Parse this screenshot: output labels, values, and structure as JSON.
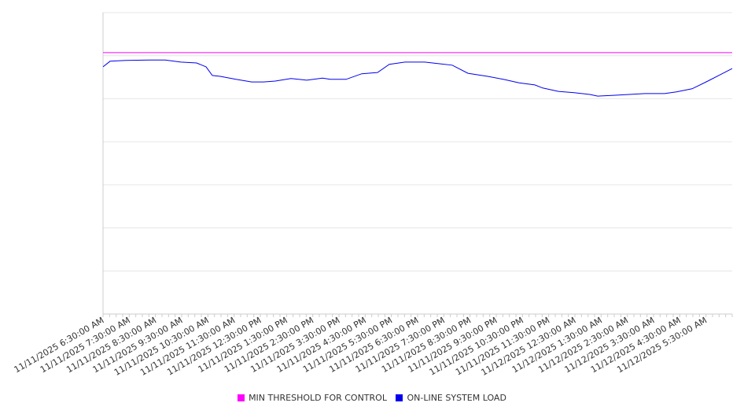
{
  "chart_data": {
    "type": "line",
    "title": "",
    "xlabel": "",
    "ylabel": "",
    "x_tick_labels": [
      "11/11/2025 6:30:00 AM",
      "11/11/2025 7:30:00 AM",
      "11/11/2025 8:30:00 AM",
      "11/11/2025 9:30:00 AM",
      "11/11/2025 10:30:00 AM",
      "11/11/2025 11:30:00 AM",
      "11/11/2025 12:30:00 PM",
      "11/11/2025 1:30:00 PM",
      "11/11/2025 2:30:00 PM",
      "11/11/2025 3:30:00 PM",
      "11/11/2025 4:30:00 PM",
      "11/11/2025 5:30:00 PM",
      "11/11/2025 6:30:00 PM",
      "11/11/2025 7:30:00 PM",
      "11/11/2025 8:30:00 PM",
      "11/11/2025 9:30:00 PM",
      "11/11/2025 10:30:00 PM",
      "11/11/2025 11:30:00 PM",
      "11/12/2025 12:30:00 AM",
      "11/12/2025 1:30:00 AM",
      "11/12/2025 2:30:00 AM",
      "11/12/2025 3:30:00 AM",
      "11/12/2025 4:30:00 AM",
      "11/12/2025 5:30:00 AM"
    ],
    "x_unit": "hours since 11/11/2025 6:30 AM",
    "xlim": [
      0,
      24
    ],
    "ylim": [
      0,
      7
    ],
    "y_gridlines": 7,
    "grid": true,
    "legend_position": "bottom",
    "series": [
      {
        "name": "MIN THRESHOLD FOR CONTROL",
        "color": "#ff00ff",
        "x": [
          0,
          24
        ],
        "y": [
          6.07,
          6.07
        ]
      },
      {
        "name": "ON-LINE SYSTEM LOAD",
        "color": "#0000ee",
        "x": [
          0,
          0.27,
          0.87,
          1.77,
          2.37,
          2.97,
          3.57,
          3.93,
          4.17,
          4.47,
          5.07,
          5.67,
          6.12,
          6.57,
          7.17,
          7.77,
          8.37,
          8.67,
          9.27,
          9.87,
          10.47,
          10.92,
          11.52,
          12.27,
          12.87,
          13.32,
          13.92,
          14.67,
          15.27,
          15.87,
          16.47,
          16.77,
          17.37,
          17.97,
          18.57,
          18.87,
          19.47,
          20.07,
          20.67,
          21.42,
          21.87,
          22.47,
          23.07,
          23.52,
          24
        ],
        "y": [
          5.74,
          5.87,
          5.89,
          5.9,
          5.9,
          5.85,
          5.83,
          5.74,
          5.54,
          5.52,
          5.45,
          5.39,
          5.39,
          5.41,
          5.47,
          5.43,
          5.48,
          5.45,
          5.45,
          5.58,
          5.61,
          5.8,
          5.85,
          5.85,
          5.81,
          5.78,
          5.59,
          5.52,
          5.45,
          5.37,
          5.32,
          5.25,
          5.17,
          5.14,
          5.1,
          5.06,
          5.08,
          5.1,
          5.12,
          5.12,
          5.16,
          5.23,
          5.41,
          5.55,
          5.7
        ]
      }
    ]
  }
}
